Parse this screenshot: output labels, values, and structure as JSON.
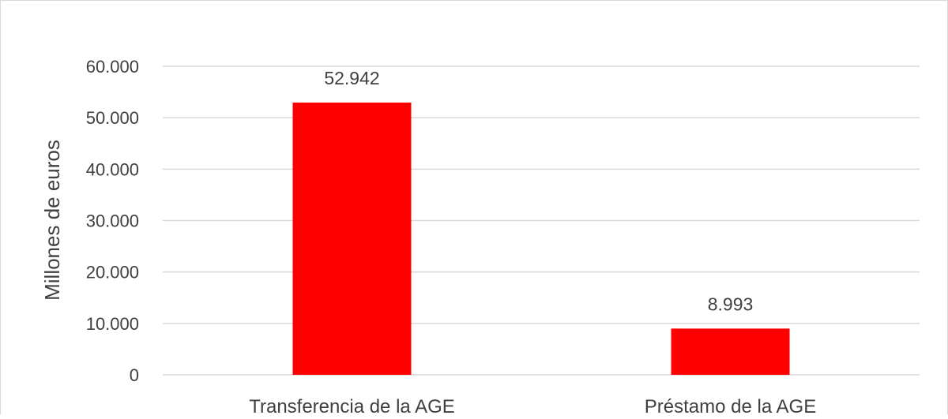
{
  "chart_data": {
    "type": "bar",
    "categories": [
      "Transferencia de la AGE",
      "Préstamo de la AGE"
    ],
    "values": [
      52942,
      8993
    ],
    "data_labels": [
      "52.942",
      "8.993"
    ],
    "ylabel": "Millones de euros",
    "ylim": [
      0,
      60000
    ],
    "yticks": [
      0,
      10000,
      20000,
      30000,
      40000,
      50000,
      60000
    ],
    "ytick_labels": [
      "0",
      "10.000",
      "20.000",
      "30.000",
      "40.000",
      "50.000",
      "60.000"
    ],
    "grid": true,
    "legend": "none",
    "colors": {
      "bar": "#ff0000",
      "grid": "#d9d9d9",
      "text": "#404040"
    }
  }
}
